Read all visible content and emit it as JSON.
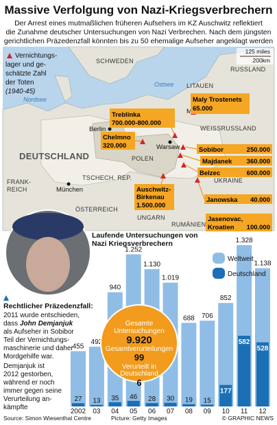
{
  "header": {
    "title": "Massive Verfolgung von Nazi-Kriegsverbrechern",
    "subtitle": [
      "Der Arrest eines mutmaßlichen früheren Aufsehers im KZ Auschwitz reflektiert",
      "die Zunahme deutscher Untersuchungen von Nazi Verbrechen. Nach dem jüngsten",
      "gerichtlichen Präzedenzfall könnten bis zu 50 ehemalige Aufseher angeklagt werden"
    ]
  },
  "map": {
    "legend": [
      "Vernichtungs-",
      "lager und ge-",
      "schätzte Zahl",
      "der Toten",
      "(1940-45)"
    ],
    "scale": [
      "125 miles",
      "200km"
    ],
    "countries": [
      "SCHWEDEN",
      "LITAUEN",
      "RUSSLAND",
      "WEISSRUSSLAND",
      "DEUTSCHLAND",
      "POLEN",
      "TSCHECH. REP.",
      "UKRAINE",
      "FRANK-",
      "REICH",
      "ÖSTERREICH",
      "UNGARN",
      "RUMÄNIEN"
    ],
    "seas": [
      "Ostsee",
      "Nordsee"
    ],
    "cities": [
      "Berlin",
      "Warsaw",
      "München",
      "Minsk"
    ],
    "camps": [
      {
        "name": [
          "Maly Trostenets"
        ],
        "deaths": "65.000"
      },
      {
        "name": [
          "Treblinka"
        ],
        "deaths": "700.000-800.000"
      },
      {
        "name": [
          "Chelmno"
        ],
        "deaths": "320.000"
      },
      {
        "name": [
          "Sobibor"
        ],
        "deaths": "250.000"
      },
      {
        "name": [
          "Majdanek"
        ],
        "deaths": "360.000"
      },
      {
        "name": [
          "Belzec"
        ],
        "deaths": "600.000"
      },
      {
        "name": [
          "Auschwitz-",
          "Birkenau"
        ],
        "deaths": "1.500.000"
      },
      {
        "name": [
          "Janowska"
        ],
        "deaths": "40.000"
      },
      {
        "name": [
          "Jasenovac,",
          "Kroatien"
        ],
        "deaths": "100.000"
      }
    ]
  },
  "chart_data": {
    "type": "bar",
    "title": [
      "Laufende Untersuchungen von",
      "Nazi Kriegsverbrechern"
    ],
    "categories": [
      "2002",
      "03",
      "04",
      "05",
      "06",
      "07",
      "08",
      "09",
      "10",
      "11",
      "12"
    ],
    "series": [
      {
        "name": "Weltweit",
        "color": "#8fbde6",
        "values": [
          455,
          492,
          940,
          1252,
          1130,
          1019,
          688,
          706,
          852,
          1328,
          1138
        ],
        "value_labels": [
          "455",
          "492",
          "940",
          "1.252",
          "1.130",
          "1.019",
          "688",
          "706",
          "852",
          "1.328",
          "1.138"
        ]
      },
      {
        "name": "Deutschland",
        "color": "#1a6fb5",
        "values": [
          27,
          13,
          35,
          46,
          28,
          30,
          19,
          15,
          177,
          582,
          528
        ]
      }
    ],
    "annotations": [
      "Gesamte",
      "Untersuchungen",
      "9.920",
      "Gesamtverurteilungen",
      "99",
      "Verurteilt in",
      "Deutschland",
      "6"
    ]
  },
  "sidebar": {
    "heading": "Rechtlicher Präzedenzfall:",
    "lines": [
      "2011 wurde entschieden,",
      "dass",
      "John Demjanjuk",
      "als Aufseher in Sobibor",
      "Teil der Vernichtungs-",
      "maschinerie und daher",
      "Mordgehilfe war.",
      "Demjanjuk ist",
      "2012 gestorben,",
      "während er noch",
      "immer gegen seine",
      "Verurteilung an-",
      "kämpfte"
    ]
  },
  "footer": {
    "source": "Source: Simon Wiesenthal Centre",
    "picture": "Picture: Getty Images",
    "credit": "© GRAPHIC NEWS"
  }
}
